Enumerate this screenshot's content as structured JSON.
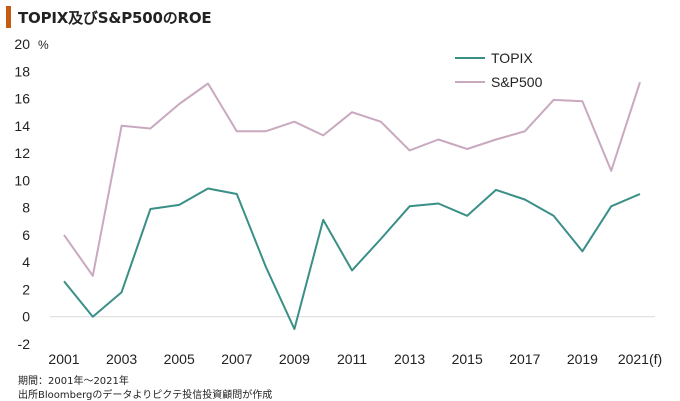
{
  "title": "TOPIX及びS&P500のROE",
  "notes": {
    "period": "期間：2001年～2021年",
    "source": "出所Bloombergのデータよりピクテ投信投資顧問が作成"
  },
  "chart_data": {
    "type": "line",
    "x": [
      2001,
      2002,
      2003,
      2004,
      2005,
      2006,
      2007,
      2008,
      2009,
      2010,
      2011,
      2012,
      2013,
      2014,
      2015,
      2016,
      2017,
      2018,
      2019,
      2020,
      2021
    ],
    "x_tick_labels": [
      "2001",
      "2003",
      "2005",
      "2007",
      "2009",
      "2011",
      "2013",
      "2015",
      "2017",
      "2019",
      "2021(f)"
    ],
    "y_unit": "%",
    "ylim": [
      -2,
      20
    ],
    "y_ticks": [
      "-2",
      "0",
      "2",
      "4",
      "6",
      "8",
      "10",
      "12",
      "14",
      "16",
      "18",
      "20"
    ],
    "grid": false,
    "legend_position": "top-right",
    "series": [
      {
        "name": "TOPIX",
        "color": "#3a8f86",
        "values": [
          2.6,
          0.0,
          1.8,
          7.9,
          8.2,
          9.4,
          9.0,
          3.7,
          -0.9,
          7.1,
          3.4,
          5.7,
          8.1,
          8.3,
          7.4,
          9.3,
          8.6,
          7.4,
          4.8,
          8.1,
          9.0
        ]
      },
      {
        "name": "S&P500",
        "color": "#c9a9bf",
        "values": [
          6.0,
          3.0,
          14.0,
          13.8,
          15.6,
          17.1,
          13.6,
          13.6,
          14.3,
          13.3,
          15.0,
          14.3,
          12.2,
          13.0,
          12.3,
          13.0,
          13.6,
          15.9,
          15.8,
          10.7,
          17.2
        ]
      }
    ]
  }
}
